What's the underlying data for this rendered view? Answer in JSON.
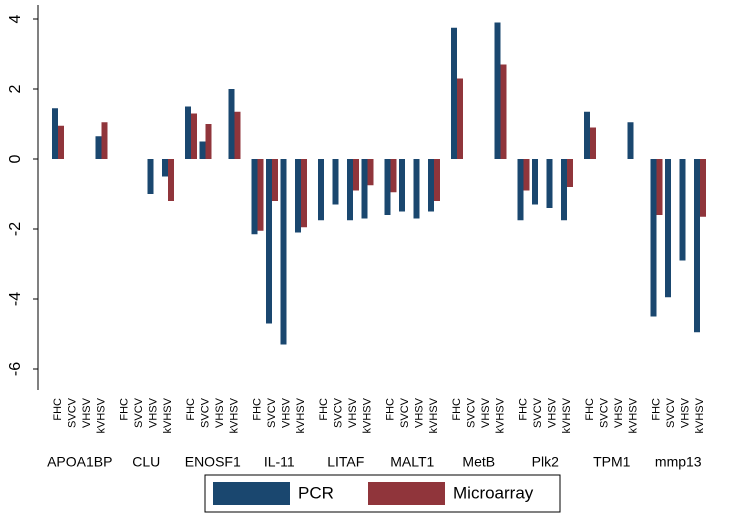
{
  "chart_data": {
    "type": "grouped-bar",
    "categories": [
      "APOA1BP",
      "CLU",
      "ENOSF1",
      "IL-11",
      "LITAF",
      "MALT1",
      "MetB",
      "Plk2",
      "TPM1",
      "mmp13"
    ],
    "subcategories": [
      "FHC",
      "SVCV",
      "VHSV",
      "kVHSV"
    ],
    "series": [
      {
        "name": "PCR",
        "color": "#1a476f",
        "values": [
          [
            1.45,
            null,
            null,
            0.65
          ],
          [
            null,
            null,
            -1.0,
            -0.5
          ],
          [
            1.5,
            0.5,
            null,
            2.0
          ],
          [
            -2.15,
            -4.7,
            -5.3,
            -2.1
          ],
          [
            -1.75,
            -1.3,
            -1.75,
            -1.7
          ],
          [
            -1.6,
            -1.5,
            -1.7,
            -1.5
          ],
          [
            3.75,
            null,
            null,
            3.9
          ],
          [
            -1.75,
            -1.3,
            -1.4,
            -1.75
          ],
          [
            1.35,
            null,
            null,
            1.05
          ],
          [
            -4.5,
            -3.95,
            -2.9,
            -4.95
          ]
        ]
      },
      {
        "name": "Microarray",
        "color": "#90353b",
        "values": [
          [
            0.95,
            null,
            null,
            1.05
          ],
          [
            null,
            null,
            null,
            -1.2
          ],
          [
            1.3,
            1.0,
            null,
            1.35
          ],
          [
            -2.05,
            -1.2,
            null,
            -1.95
          ],
          [
            null,
            null,
            -0.9,
            -0.75
          ],
          [
            -0.95,
            null,
            null,
            -1.2
          ],
          [
            2.3,
            null,
            null,
            2.7
          ],
          [
            -0.9,
            null,
            null,
            -0.8
          ],
          [
            0.9,
            null,
            null,
            null
          ],
          [
            -1.6,
            null,
            null,
            -1.65
          ]
        ]
      }
    ],
    "ylim": [
      -6.6,
      4.4
    ],
    "yticks": [
      -6,
      -4,
      -2,
      0,
      2,
      4
    ],
    "grid": false
  }
}
